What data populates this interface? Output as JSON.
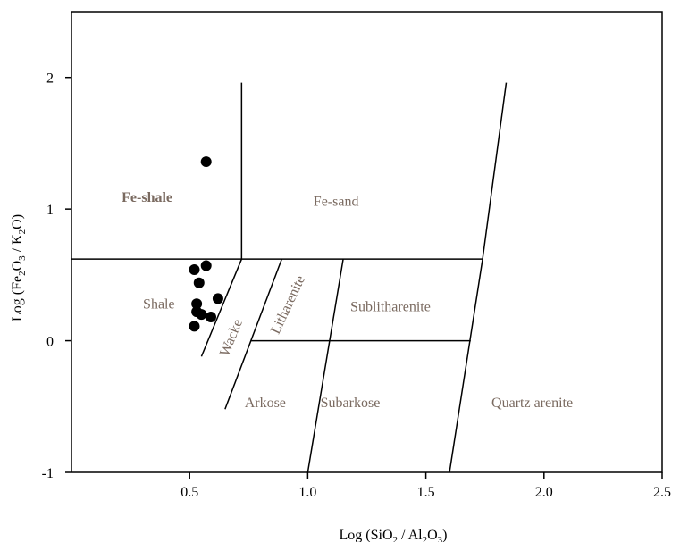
{
  "chart_data": {
    "type": "scatter",
    "xlabel": "Log (SiO2 / Al2O3)",
    "ylabel": "Log (Fe2O3 / K2O)",
    "xlim": [
      0,
      2.5
    ],
    "ylim": [
      -1,
      2.5
    ],
    "x_ticks": [
      {
        "value": 0.5,
        "label": "0.5"
      },
      {
        "value": 1.0,
        "label": "1.0"
      },
      {
        "value": 1.5,
        "label": "1.5"
      },
      {
        "value": 2.0,
        "label": "2.0"
      },
      {
        "value": 2.5,
        "label": "2.5"
      }
    ],
    "y_ticks": [
      {
        "value": -1,
        "label": "-1"
      },
      {
        "value": 0,
        "label": "0"
      },
      {
        "value": 1,
        "label": "1"
      },
      {
        "value": 2,
        "label": "2"
      }
    ],
    "field_labels": [
      {
        "text": "Fe-shale",
        "x": 0.32,
        "y": 1.08,
        "bold": true,
        "rotate": 0
      },
      {
        "text": "Fe-sand",
        "x": 1.12,
        "y": 1.05,
        "bold": false,
        "rotate": 0
      },
      {
        "text": "Shale",
        "x": 0.37,
        "y": 0.27,
        "bold": false,
        "rotate": 0
      },
      {
        "text": "Wacke",
        "x": 0.68,
        "y": 0.02,
        "bold": false,
        "rotate": -68
      },
      {
        "text": "Litharenite",
        "x": 0.92,
        "y": 0.27,
        "bold": false,
        "rotate": -65
      },
      {
        "text": "Sublitharenite",
        "x": 1.35,
        "y": 0.25,
        "bold": false,
        "rotate": 0
      },
      {
        "text": "Arkose",
        "x": 0.82,
        "y": -0.48,
        "bold": false,
        "rotate": 0
      },
      {
        "text": "Subarkose",
        "x": 1.18,
        "y": -0.48,
        "bold": false,
        "rotate": 0
      },
      {
        "text": "Quartz arenite",
        "x": 1.95,
        "y": -0.48,
        "bold": false,
        "rotate": 0
      }
    ],
    "boundaries": [
      [
        [
          0.0,
          0.62
        ],
        [
          1.74,
          0.62
        ]
      ],
      [
        [
          0.72,
          0.62
        ],
        [
          0.72,
          1.96
        ]
      ],
      [
        [
          0.72,
          0.62
        ],
        [
          0.55,
          -0.12
        ]
      ],
      [
        [
          0.89,
          0.62
        ],
        [
          0.65,
          -0.52
        ]
      ],
      [
        [
          0.76,
          0.0
        ],
        [
          1.69,
          0.0
        ]
      ],
      [
        [
          1.15,
          0.62
        ],
        [
          1.0,
          -1.0
        ]
      ],
      [
        [
          1.74,
          0.62
        ],
        [
          1.84,
          1.96
        ]
      ],
      [
        [
          1.74,
          0.62
        ],
        [
          1.6,
          -1.0
        ]
      ]
    ],
    "series": [
      {
        "points": [
          {
            "x": 0.57,
            "y": 1.36
          },
          {
            "x": 0.52,
            "y": 0.54
          },
          {
            "x": 0.57,
            "y": 0.57
          },
          {
            "x": 0.54,
            "y": 0.44
          },
          {
            "x": 0.53,
            "y": 0.28
          },
          {
            "x": 0.62,
            "y": 0.32
          },
          {
            "x": 0.53,
            "y": 0.22
          },
          {
            "x": 0.55,
            "y": 0.2
          },
          {
            "x": 0.59,
            "y": 0.18
          },
          {
            "x": 0.52,
            "y": 0.11
          }
        ]
      }
    ],
    "colors": {
      "field_label": "#7a6a60",
      "marker": "#000000",
      "line": "#000000"
    },
    "grid": false,
    "legend": "none"
  }
}
